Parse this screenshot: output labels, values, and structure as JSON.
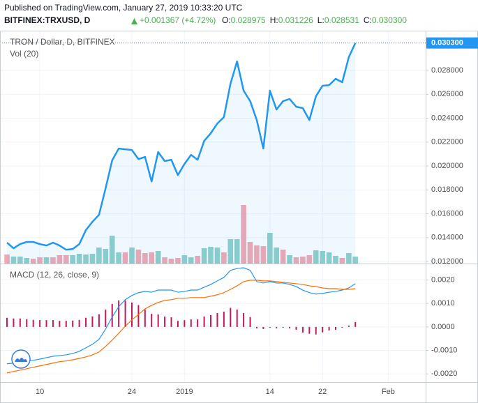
{
  "header": {
    "published": "Published on TradingView.com, January 27, 2019 10:33:20 UTC",
    "symbol": "BITFINEX:TRXUSD, D",
    "change": "+0.001367 (+4.72%)",
    "ohlc": [
      {
        "label": "O:",
        "value": "0.028975"
      },
      {
        "label": "H:",
        "value": "0.031226"
      },
      {
        "label": "L:",
        "value": "0.028531"
      },
      {
        "label": "C:",
        "value": "0.030300"
      }
    ]
  },
  "chart_data": [
    {
      "type": "line",
      "title": "TRON / Dollar, D, BITFINEX",
      "grid": true,
      "area_color": "#2196f3",
      "categories": [
        null,
        null,
        null,
        null,
        null,
        "10",
        null,
        null,
        null,
        null,
        null,
        null,
        null,
        null,
        null,
        null,
        null,
        null,
        null,
        "24",
        null,
        null,
        null,
        null,
        null,
        null,
        null,
        "2019",
        null,
        null,
        null,
        null,
        null,
        null,
        null,
        null,
        null,
        null,
        null,
        null,
        "14",
        null,
        null,
        null,
        null,
        null,
        null,
        null,
        "22",
        null,
        null,
        null,
        null,
        null,
        null,
        null,
        null,
        null,
        "Feb",
        null,
        null,
        null,
        null,
        null
      ],
      "series": [
        {
          "name": "TRON / Dollar, D, BITFINEX",
          "color": "#2196f3",
          "values": [
            0.01358,
            0.01311,
            0.01346,
            0.01364,
            0.01364,
            0.01346,
            0.01334,
            0.01358,
            0.01334,
            0.01299,
            0.01305,
            0.01346,
            0.01463,
            0.01533,
            0.01591,
            0.01813,
            0.02047,
            0.02146,
            0.0214,
            0.02134,
            0.02058,
            0.02076,
            0.01871,
            0.02117,
            0.02041,
            0.02052,
            0.01924,
            0.02017,
            0.02093,
            0.02052,
            0.0221,
            0.02274,
            0.02356,
            0.02409,
            0.02689,
            0.02876,
            0.02631,
            0.02543,
            0.02385,
            0.02146,
            0.02631,
            0.02473,
            0.02543,
            0.02561,
            0.02496,
            0.02485,
            0.02385,
            0.02584,
            0.02672,
            0.02677,
            0.0273,
            0.02701,
            0.02911,
            0.0303,
            null,
            null,
            null,
            null,
            null,
            null,
            null,
            null,
            null,
            null
          ]
        }
      ],
      "volume": {
        "name": "Vol (20)",
        "vlim": [
          0,
          100
        ],
        "values": [
          13,
          10,
          10,
          8,
          7,
          9,
          9,
          9,
          12,
          12,
          12,
          14,
          13,
          14,
          23,
          21,
          40,
          16,
          16,
          23,
          20,
          15,
          16,
          18,
          9,
          7,
          8,
          12,
          9,
          11,
          22,
          24,
          23,
          16,
          35,
          35,
          84,
          31,
          26,
          25,
          44,
          23,
          20,
          12,
          9,
          10,
          12,
          19,
          18,
          16,
          11,
          8,
          15,
          10,
          null,
          null,
          null,
          null,
          null,
          null,
          null,
          null,
          null,
          null
        ],
        "colors": [
          "#ef9aa6",
          "#7fc8c2",
          "#7fc8c2",
          "#7fc8c2",
          "#ef9aa6",
          "#ef9aa6",
          "#7fc8c2",
          "#ef9aa6",
          "#ef9aa6",
          "#ef9aa6",
          "#7fc8c2",
          "#7fc8c2",
          "#7fc8c2",
          "#7fc8c2",
          "#7fc8c2",
          "#7fc8c2",
          "#7fc8c2",
          "#7fc8c2",
          "#ef9aa6",
          "#7fc8c2",
          "#ef9aa6",
          "#ef9aa6",
          "#ef9aa6",
          "#7fc8c2",
          "#ef9aa6",
          "#ef9aa6",
          "#ef9aa6",
          "#7fc8c2",
          "#7fc8c2",
          "#ef9aa6",
          "#7fc8c2",
          "#7fc8c2",
          "#7fc8c2",
          "#ef9aa6",
          "#7fc8c2",
          "#7fc8c2",
          "#ef9aa6",
          "#ef9aa6",
          "#ef9aa6",
          "#ef9aa6",
          "#7fc8c2",
          "#7fc8c2",
          "#ef9aa6",
          "#7fc8c2",
          "#ef9aa6",
          "#ef9aa6",
          "#ef9aa6",
          "#7fc8c2",
          "#7fc8c2",
          "#7fc8c2",
          "#7fc8c2",
          "#ef9aa6",
          "#7fc8c2",
          "#7fc8c2",
          null,
          null,
          null,
          null,
          null,
          null,
          null,
          null,
          null,
          null
        ]
      },
      "ylim": [
        0.01183,
        0.03133
      ],
      "yticks": [
        {
          "value": 0.012,
          "label": "0.012000"
        },
        {
          "value": 0.014,
          "label": "0.014000"
        },
        {
          "value": 0.016,
          "label": "0.016000"
        },
        {
          "value": 0.018,
          "label": "0.018000"
        },
        {
          "value": 0.02,
          "label": "0.020000"
        },
        {
          "value": 0.022,
          "label": "0.022000"
        },
        {
          "value": 0.024,
          "label": "0.024000"
        },
        {
          "value": 0.026,
          "label": "0.026000"
        },
        {
          "value": 0.028,
          "label": "0.028000"
        }
      ],
      "last_value": {
        "value": 0.0303,
        "label": "0.030300"
      }
    },
    {
      "type": "macd",
      "title": "MACD (12, 26, close, 9)",
      "grid": true,
      "series": [
        {
          "color": "#2196f3",
          "values": [
            -0.00157,
            -0.00154,
            -0.00148,
            -0.00145,
            -0.00142,
            -0.00137,
            -0.00131,
            -0.00125,
            -0.00122,
            -0.00119,
            -0.00113,
            -0.00104,
            -0.00089,
            -0.00074,
            -0.00053,
            -9e-05,
            0.00042,
            0.00086,
            0.00116,
            0.00134,
            0.00146,
            0.00151,
            0.00148,
            0.00157,
            0.00157,
            0.00157,
            0.00148,
            0.00151,
            0.00157,
            0.00157,
            0.00169,
            0.00181,
            0.00196,
            0.00211,
            0.00241,
            0.00249,
            0.00252,
            0.00241,
            0.00193,
            0.00187,
            0.00193,
            0.00187,
            0.00187,
            0.00181,
            0.00172,
            0.00157,
            0.00146,
            0.0014,
            0.00143,
            0.00148,
            0.00151,
            0.00157,
            0.00166,
            0.00184,
            null,
            null,
            null,
            null,
            null,
            null,
            null,
            null,
            null,
            null
          ]
        },
        {
          "color": "#ff6d00",
          "values": [
            -0.00196,
            -0.0019,
            -0.00184,
            -0.00178,
            -0.00172,
            -0.00166,
            -0.0016,
            -0.00154,
            -0.00148,
            -0.00145,
            -0.0014,
            -0.00134,
            -0.00128,
            -0.00119,
            -0.00107,
            -0.00083,
            -0.00056,
            -0.00027,
            3e-05,
            0.0003,
            0.00053,
            0.00077,
            0.00092,
            0.00104,
            0.00113,
            0.00116,
            0.00122,
            0.00122,
            0.00125,
            0.00125,
            0.00125,
            0.00131,
            0.00137,
            0.00146,
            0.0016,
            0.00175,
            0.00193,
            0.00199,
            0.00199,
            0.00196,
            0.00196,
            0.00193,
            0.0019,
            0.00187,
            0.00184,
            0.00181,
            0.00175,
            0.00172,
            0.00166,
            0.00163,
            0.00163,
            0.0016,
            0.0016,
            0.00163,
            null,
            null,
            null,
            null,
            null,
            null,
            null,
            null,
            null,
            null
          ]
        }
      ],
      "histogram": {
        "color": "#c2185b",
        "values": [
          0.00039,
          0.00036,
          0.00036,
          0.00033,
          0.0003,
          0.00029,
          0.00029,
          0.00029,
          0.00026,
          0.00026,
          0.00027,
          0.0003,
          0.00039,
          0.00045,
          0.00054,
          0.00074,
          0.00098,
          0.00113,
          0.00113,
          0.00104,
          0.00093,
          0.00074,
          0.00056,
          0.00053,
          0.00044,
          0.00041,
          0.00026,
          0.00029,
          0.00032,
          0.00032,
          0.00044,
          0.0005,
          0.00059,
          0.00065,
          0.00081,
          0.00074,
          0.00059,
          0.00042,
          -6e-05,
          -9e-05,
          -3e-05,
          -6e-05,
          -3e-05,
          -6e-05,
          -0.00012,
          -0.00024,
          -0.00029,
          -0.00032,
          -0.00023,
          -0.00015,
          -0.00012,
          -3e-05,
          6e-05,
          0.00021,
          null,
          null,
          null,
          null,
          null,
          null,
          null,
          null,
          null,
          null
        ]
      },
      "ylim": [
        -0.00235,
        0.00264
      ],
      "yticks": [
        {
          "value": 0.002,
          "label": "0.0020"
        },
        {
          "value": 0.001,
          "label": "0.0010"
        },
        {
          "value": 0,
          "label": "0.0000"
        },
        {
          "value": -0.001,
          "label": "-0.0010"
        },
        {
          "value": -0.002,
          "label": "-0.0020"
        }
      ]
    }
  ]
}
